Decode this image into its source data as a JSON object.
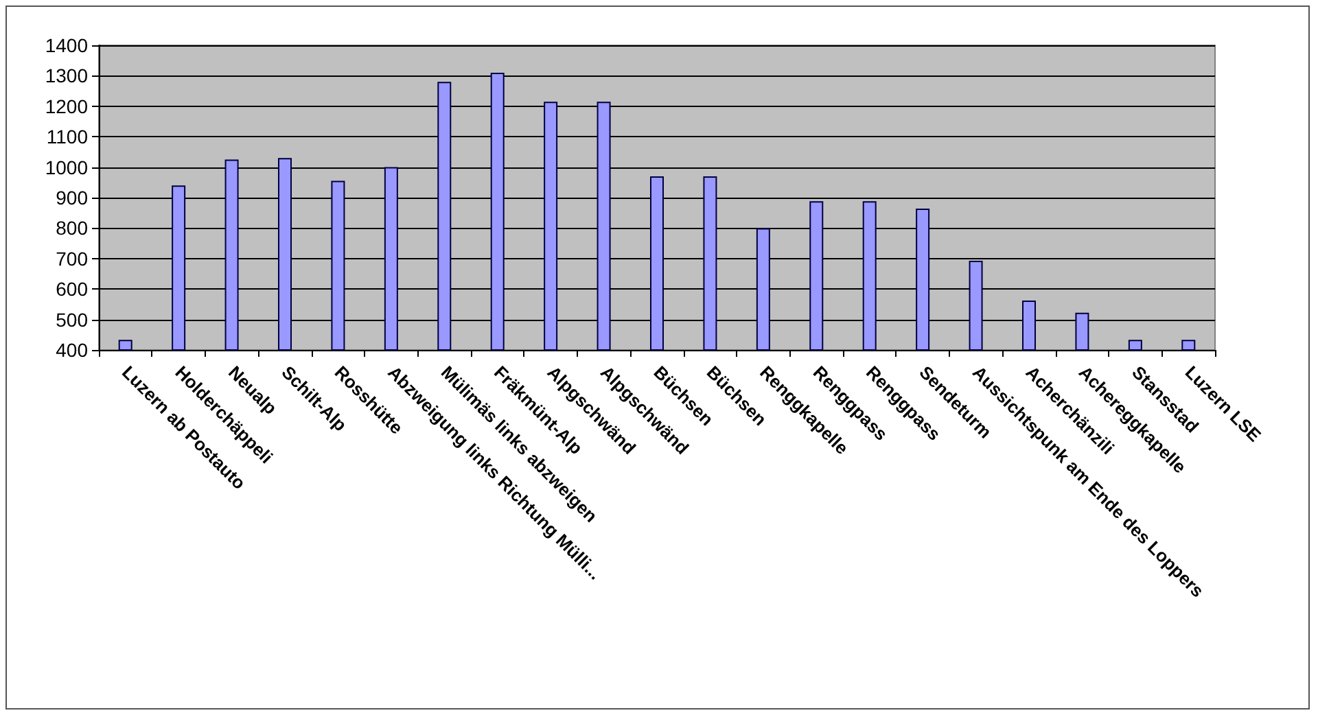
{
  "chart_data": {
    "type": "bar",
    "categories": [
      "Luzern ab Postauto",
      "Holderchäppeli",
      "Neualp",
      "Schilt-Alp",
      "Rosshütte",
      "Abzweigung links Richtung Mülli...",
      "Mülimäs links abzweigen",
      "Fräkmünt-Alp",
      "Alpgschwänd",
      "Alpgschwänd",
      "Büchsen",
      "Büchsen",
      "Renggkapelle",
      "Renggpass",
      "Renggpass",
      "Sendeturm",
      "Aussichtspunk am Ende des Loppers",
      "Acherchänzili",
      "Achereggkapelle",
      "Stansstad",
      "Luzern LSE"
    ],
    "values": [
      433,
      940,
      1025,
      1030,
      955,
      1000,
      1280,
      1310,
      1215,
      1215,
      970,
      970,
      800,
      888,
      888,
      864,
      693,
      562,
      522,
      433,
      433
    ],
    "color": "#9999ff",
    "ylim": [
      400,
      1400
    ],
    "yticks": [
      400,
      500,
      600,
      700,
      800,
      900,
      1000,
      1100,
      1200,
      1300,
      1400
    ],
    "grid": "y"
  }
}
